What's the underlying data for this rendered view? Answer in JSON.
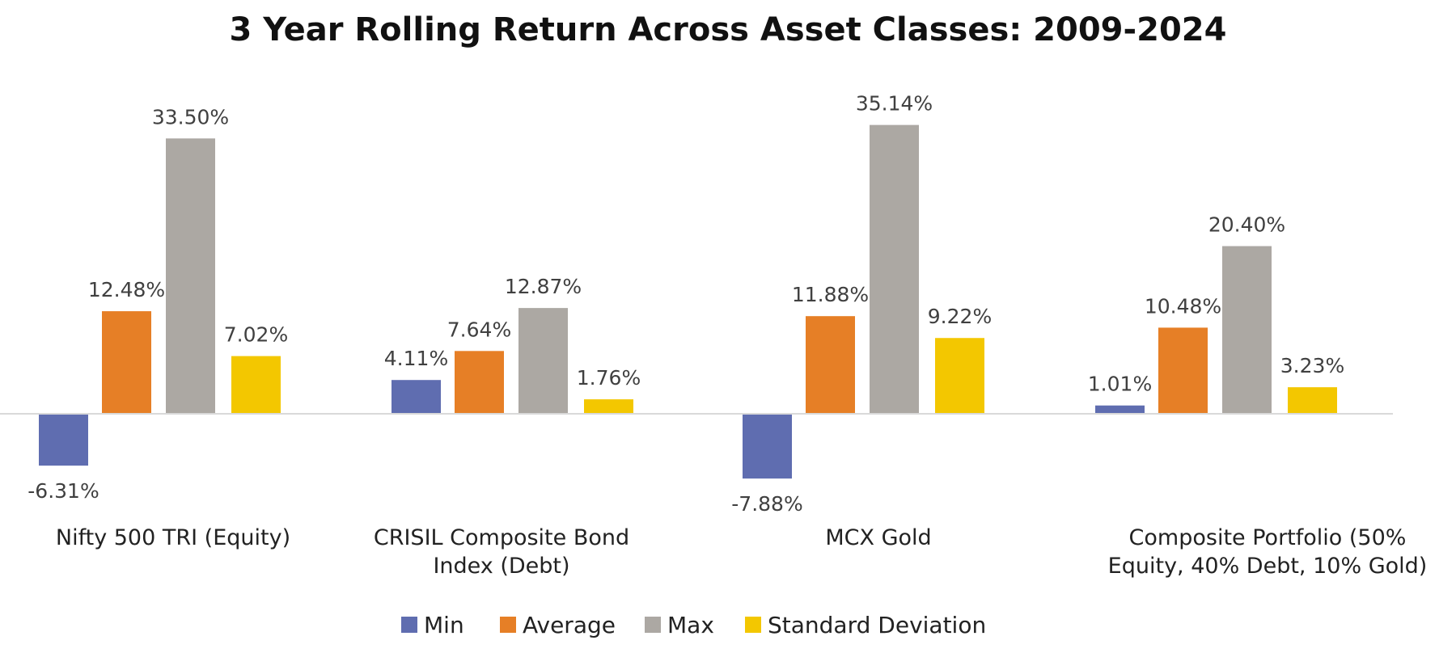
{
  "chart_data": {
    "type": "bar",
    "title": "3 Year Rolling Return Across Asset Classes: 2009-2024",
    "categories": [
      [
        "Nifty 500 TRI (Equity)"
      ],
      [
        "CRISIL Composite Bond",
        "Index (Debt)"
      ],
      [
        "MCX Gold"
      ],
      [
        "Composite Portfolio (50%",
        "Equity, 40% Debt, 10% Gold)"
      ]
    ],
    "series": [
      {
        "name": "Min",
        "color": "#5f6db0",
        "values": [
          -6.31,
          4.11,
          -7.88,
          1.01
        ],
        "labels": [
          "-6.31%",
          "4.11%",
          "-7.88%",
          "1.01%"
        ]
      },
      {
        "name": "Average",
        "color": "#e67f26",
        "values": [
          12.48,
          7.64,
          11.88,
          10.48
        ],
        "labels": [
          "12.48%",
          "7.64%",
          "11.88%",
          "10.48%"
        ]
      },
      {
        "name": "Max",
        "color": "#aca8a3",
        "values": [
          33.5,
          12.87,
          35.14,
          20.4
        ],
        "labels": [
          "33.50%",
          "12.87%",
          "35.14%",
          "20.40%"
        ]
      },
      {
        "name": "Standard Deviation",
        "color": "#f3c700",
        "values": [
          7.02,
          1.76,
          9.22,
          3.23
        ],
        "labels": [
          "7.02%",
          "1.76%",
          "9.22%",
          "3.23%"
        ]
      }
    ],
    "xlabel": "",
    "ylabel": "",
    "ylim": [
      -10,
      40
    ],
    "grid": false,
    "legend": "bottom-center",
    "axis_line_color": "#d9d9d9"
  }
}
